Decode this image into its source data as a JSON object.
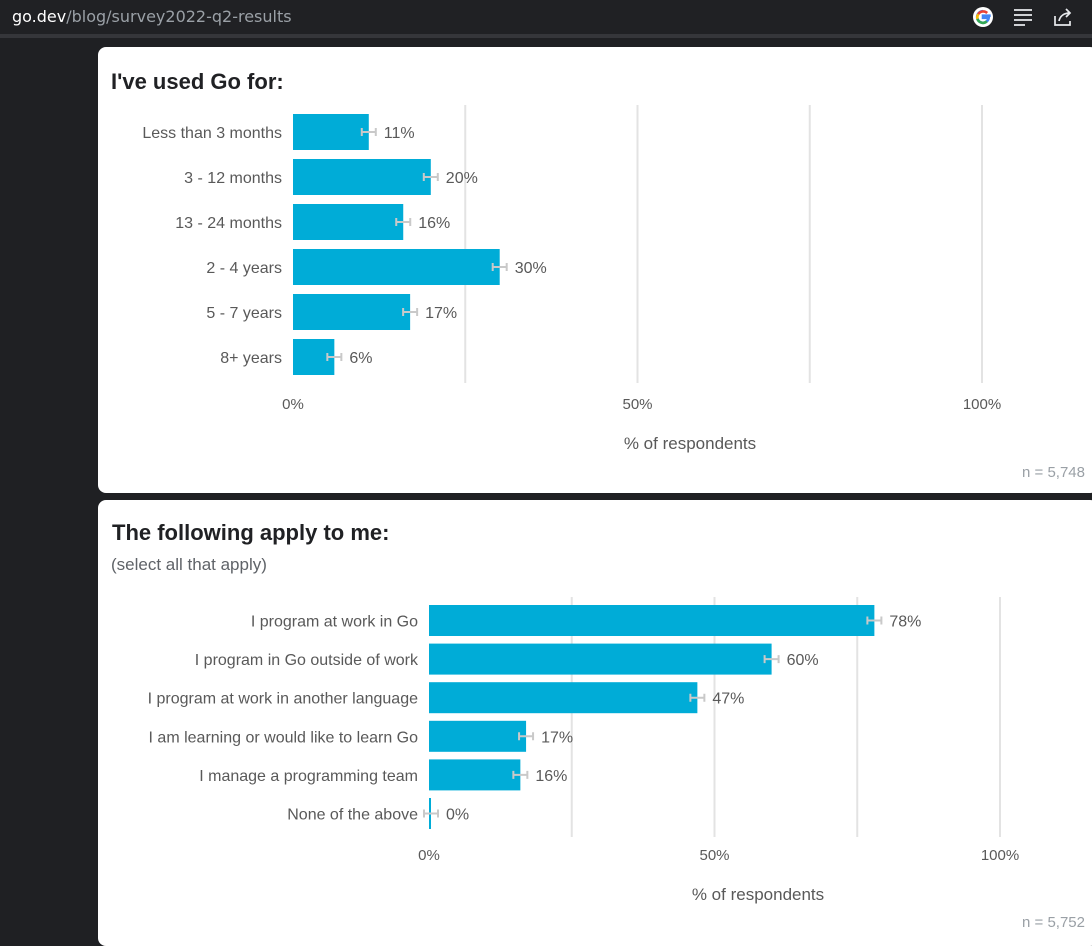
{
  "browser": {
    "url_host": "go.dev",
    "url_path": "/blog/survey2022-q2-results",
    "icons": [
      "google-icon",
      "reader-mode-icon",
      "share-icon"
    ]
  },
  "colors": {
    "bar": "#00acd7",
    "grid": "#e3e3e3",
    "error_bar": "#c9c9c9",
    "label": "#595959"
  },
  "chart_data": [
    {
      "type": "bar",
      "orientation": "horizontal",
      "title": "I've used Go for:",
      "categories": [
        "Less than 3 months",
        "3 - 12 months",
        "13 - 24 months",
        "2 - 4 years",
        "5 - 7 years",
        "8+ years"
      ],
      "values": [
        11,
        20,
        16,
        30,
        17,
        6
      ],
      "value_labels": [
        "11%",
        "20%",
        "16%",
        "30%",
        "17%",
        "6%"
      ],
      "xlabel": "% of respondents",
      "xlim": [
        0,
        100
      ],
      "ticks": [
        0,
        50,
        100
      ],
      "tick_labels": [
        "0%",
        "50%",
        "100%"
      ],
      "grid": true,
      "n_label": "n =  5,748"
    },
    {
      "type": "bar",
      "orientation": "horizontal",
      "title": "The following apply to me:",
      "subtitle": "(select all that apply)",
      "categories": [
        "I program at work in Go",
        "I program in Go outside of work",
        "I program at work in another language",
        "I am learning or would like to learn Go",
        "I manage a programming team",
        "None of the above"
      ],
      "values": [
        78,
        60,
        47,
        17,
        16,
        0
      ],
      "value_labels": [
        "78%",
        "60%",
        "47%",
        "17%",
        "16%",
        "0%"
      ],
      "xlabel": "% of respondents",
      "xlim": [
        0,
        100
      ],
      "ticks": [
        0,
        50,
        100
      ],
      "tick_labels": [
        "0%",
        "50%",
        "100%"
      ],
      "grid": true,
      "n_label": "n =  5,752"
    }
  ]
}
